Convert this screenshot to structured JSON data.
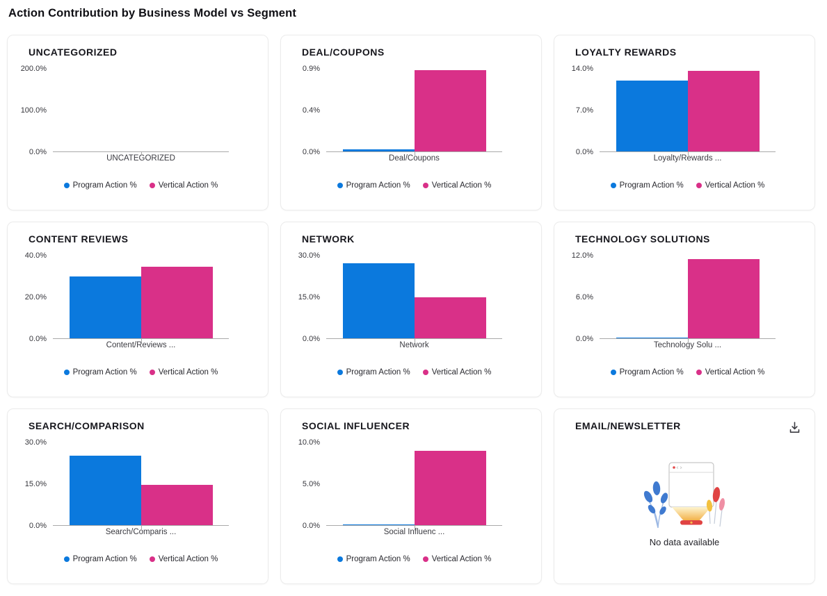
{
  "page_title": "Action Contribution by Business Model vs Segment",
  "colors": {
    "program": "#0b79dd",
    "vertical": "#d93088",
    "axis": "#a9a9a9"
  },
  "icons": {
    "download": "tray-with-down-arrow"
  },
  "chart_data": [
    {
      "type": "bar",
      "title": "UNCATEGORIZED",
      "category": "UNCATEGORIZED",
      "y_ticks": [
        "200.0%",
        "100.0%",
        "0.0%"
      ],
      "ylim": [
        0,
        200
      ],
      "series": [
        {
          "name": "Program Action %",
          "value": 0
        },
        {
          "name": "Vertical Action %",
          "value": 0
        }
      ]
    },
    {
      "type": "bar",
      "title": "DEAL/COUPONS",
      "category": "Deal/Coupons",
      "y_ticks": [
        "0.9%",
        "0.4%",
        "0.0%"
      ],
      "ylim": [
        0,
        0.9
      ],
      "series": [
        {
          "name": "Program Action %",
          "value": 0.02
        },
        {
          "name": "Vertical Action %",
          "value": 0.88
        }
      ]
    },
    {
      "type": "bar",
      "title": "LOYALTY REWARDS",
      "category": "Loyalty/Rewards ...",
      "y_ticks": [
        "14.0%",
        "7.0%",
        "0.0%"
      ],
      "ylim": [
        0,
        14
      ],
      "series": [
        {
          "name": "Program Action %",
          "value": 11.9
        },
        {
          "name": "Vertical Action %",
          "value": 13.5
        }
      ]
    },
    {
      "type": "bar",
      "title": "CONTENT REVIEWS",
      "category": "Content/Reviews ...",
      "y_ticks": [
        "40.0%",
        "20.0%",
        "0.0%"
      ],
      "ylim": [
        0,
        40
      ],
      "series": [
        {
          "name": "Program Action %",
          "value": 29.7
        },
        {
          "name": "Vertical Action %",
          "value": 34.4
        }
      ]
    },
    {
      "type": "bar",
      "title": "NETWORK",
      "category": "Network",
      "y_ticks": [
        "30.0%",
        "15.0%",
        "0.0%"
      ],
      "ylim": [
        0,
        30
      ],
      "series": [
        {
          "name": "Program Action %",
          "value": 27.1
        },
        {
          "name": "Vertical Action %",
          "value": 14.7
        }
      ]
    },
    {
      "type": "bar",
      "title": "TECHNOLOGY SOLUTIONS",
      "category": "Technology Solu ...",
      "y_ticks": [
        "12.0%",
        "6.0%",
        "0.0%"
      ],
      "ylim": [
        0,
        12
      ],
      "series": [
        {
          "name": "Program Action %",
          "value": 0.05
        },
        {
          "name": "Vertical Action %",
          "value": 11.4
        }
      ]
    },
    {
      "type": "bar",
      "title": "SEARCH/COMPARISON",
      "category": "Search/Comparis ...",
      "y_ticks": [
        "30.0%",
        "15.0%",
        "0.0%"
      ],
      "ylim": [
        0,
        30
      ],
      "series": [
        {
          "name": "Program Action %",
          "value": 24.9
        },
        {
          "name": "Vertical Action %",
          "value": 14.4
        }
      ]
    },
    {
      "type": "bar",
      "title": "SOCIAL INFLUENCER",
      "category": "Social Influenc ...",
      "y_ticks": [
        "10.0%",
        "5.0%",
        "0.0%"
      ],
      "ylim": [
        0,
        10
      ],
      "series": [
        {
          "name": "Program Action %",
          "value": 0.02
        },
        {
          "name": "Vertical Action %",
          "value": 8.9
        }
      ]
    },
    {
      "type": "bar",
      "title": "EMAIL/NEWSLETTER",
      "no_data": true,
      "no_data_text": "No data available",
      "series": []
    }
  ]
}
